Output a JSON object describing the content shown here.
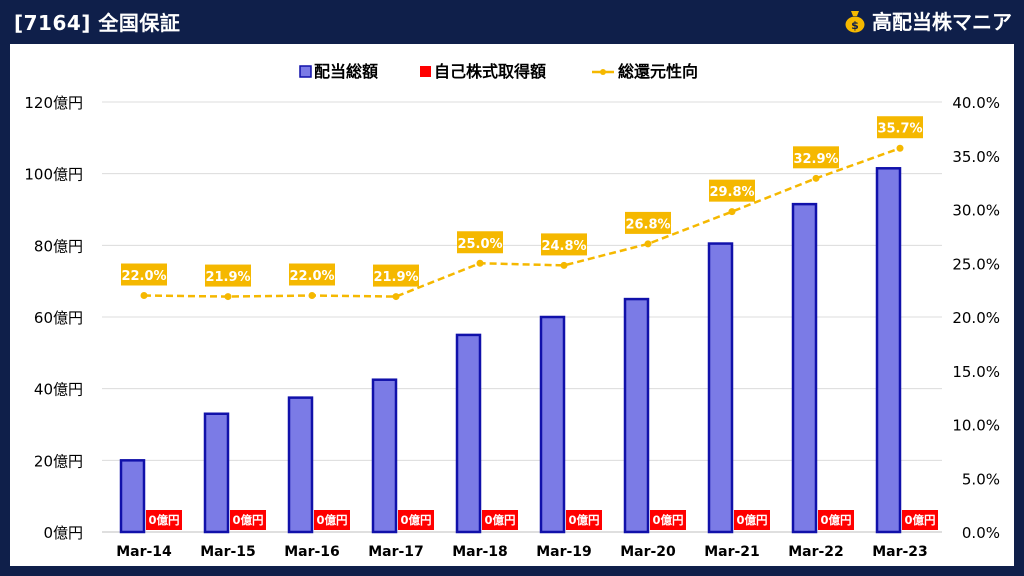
{
  "header": {
    "title": "[7164] 全国保証",
    "brand": "高配当株マニア"
  },
  "colors": {
    "background": "#0f1f4a",
    "bar_fill": "#7b7be6",
    "bar_stroke": "#1111aa",
    "buyback": "#ff0000",
    "ratio_line": "#f5b800"
  },
  "chart_data": {
    "type": "bar",
    "categories": [
      "Mar-14",
      "Mar-15",
      "Mar-16",
      "Mar-17",
      "Mar-18",
      "Mar-19",
      "Mar-20",
      "Mar-21",
      "Mar-22",
      "Mar-23"
    ],
    "series": [
      {
        "name": "配当総額",
        "type": "bar",
        "axis": "left",
        "values": [
          20,
          33,
          37.5,
          42.5,
          55,
          60,
          65,
          80.5,
          91.5,
          101.5
        ]
      },
      {
        "name": "自己株式取得額",
        "type": "bar",
        "axis": "left",
        "values": [
          0,
          0,
          0,
          0,
          0,
          0,
          0,
          0,
          0,
          0
        ],
        "labels": [
          "0億円",
          "0億円",
          "0億円",
          "0億円",
          "0億円",
          "0億円",
          "0億円",
          "0億円",
          "0億円",
          "0億円"
        ]
      },
      {
        "name": "総還元性向",
        "type": "line",
        "axis": "right",
        "values": [
          22.0,
          21.9,
          22.0,
          21.9,
          25.0,
          24.8,
          26.8,
          29.8,
          32.9,
          35.7
        ],
        "labels": [
          "22.0%",
          "21.9%",
          "22.0%",
          "21.9%",
          "25.0%",
          "24.8%",
          "26.8%",
          "29.8%",
          "32.9%",
          "35.7%"
        ]
      }
    ],
    "y_left": {
      "range": [
        0,
        120
      ],
      "ticks": [
        "0億円",
        "20億円",
        "40億円",
        "60億円",
        "80億円",
        "100億円",
        "120億円"
      ]
    },
    "y_right": {
      "range": [
        0,
        40
      ],
      "ticks": [
        "0.0%",
        "5.0%",
        "10.0%",
        "15.0%",
        "20.0%",
        "25.0%",
        "30.0%",
        "35.0%",
        "40.0%"
      ]
    },
    "grid": true,
    "legend": "top-center"
  }
}
